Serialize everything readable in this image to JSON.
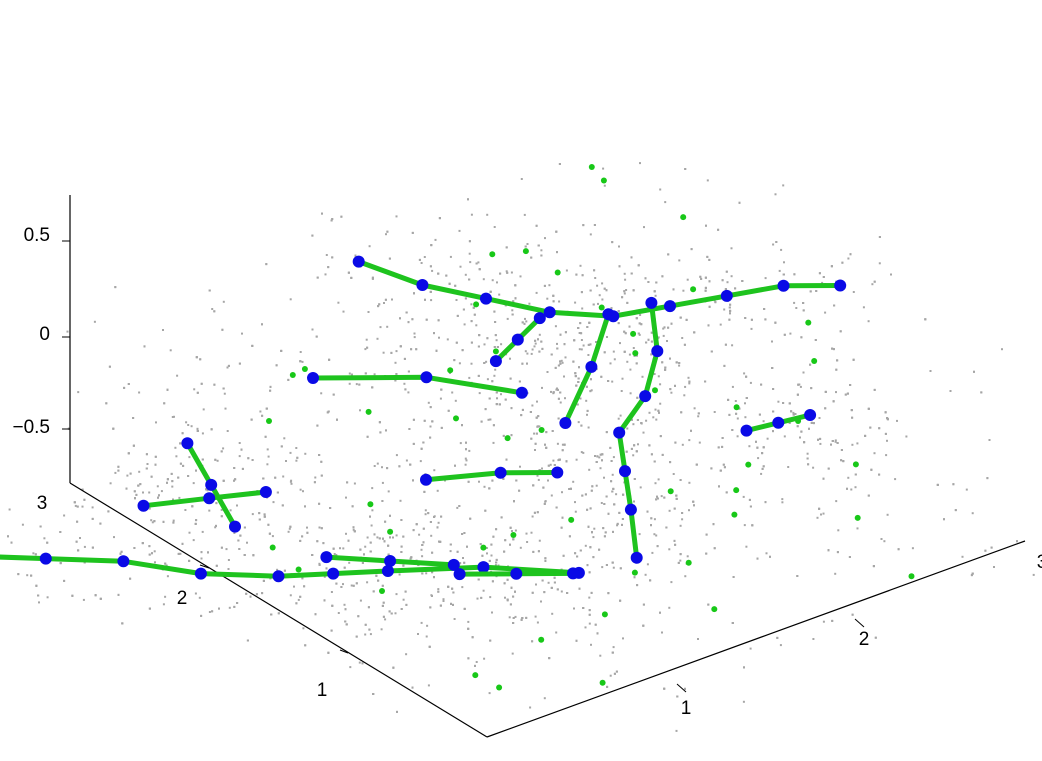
{
  "chart_data": {
    "type": "scatter",
    "projection": "3d",
    "title": "",
    "xlabel": "",
    "ylabel": "",
    "zlabel": "",
    "xlim": [
      0,
      3
    ],
    "ylim": [
      0,
      3
    ],
    "zlim": [
      -0.75,
      0.75
    ],
    "x_ticks": [
      "1",
      "2",
      "3"
    ],
    "y_ticks": [
      "1",
      "2",
      "3"
    ],
    "z_ticks": [
      "0.5",
      "0",
      "−0.5"
    ],
    "grid": false,
    "legend": "none",
    "background_cloud": {
      "name": "",
      "color": "#a6a6a6",
      "approx_count": 3000,
      "description": "gray point cloud concentrated along the skeleton lines"
    },
    "isolated_points": {
      "color": "#18c818",
      "points": [
        [
          2.6,
          2.6,
          0.6
        ],
        [
          2.0,
          2.3,
          0.5
        ],
        [
          2.8,
          1.3,
          0.3
        ],
        [
          2.6,
          1.0,
          0.3
        ],
        [
          2.2,
          0.6,
          0.3
        ],
        [
          1.7,
          0.4,
          0.2
        ],
        [
          2.2,
          2.8,
          0.2
        ],
        [
          1.8,
          2.4,
          0.25
        ],
        [
          1.6,
          2.0,
          0.25
        ],
        [
          1.2,
          1.4,
          0.2
        ],
        [
          2.1,
          1.5,
          0.1
        ],
        [
          2.0,
          0.7,
          0.1
        ],
        [
          2.5,
          2.4,
          0.0
        ],
        [
          2.7,
          2.0,
          0.2
        ],
        [
          1.7,
          1.8,
          -0.1
        ],
        [
          1.2,
          2.4,
          -0.1
        ],
        [
          1.0,
          1.1,
          -0.1
        ],
        [
          0.7,
          1.6,
          -0.2
        ],
        [
          1.4,
          1.2,
          -0.2
        ],
        [
          1.8,
          1.0,
          -0.1
        ],
        [
          2.0,
          0.8,
          -0.2
        ],
        [
          2.6,
          0.7,
          -0.1
        ],
        [
          0.8,
          2.6,
          -0.1
        ],
        [
          0.2,
          1.8,
          -0.2
        ],
        [
          0.9,
          2.0,
          -0.3
        ],
        [
          0.5,
          1.4,
          -0.35
        ],
        [
          1.2,
          0.7,
          -0.4
        ],
        [
          0.4,
          0.6,
          -0.4
        ],
        [
          0.3,
          0.3,
          -0.3
        ],
        [
          1.5,
          0.3,
          -0.3
        ],
        [
          0.8,
          0.2,
          -0.4
        ],
        [
          2.6,
          0.3,
          -0.5
        ],
        [
          2.8,
          2.2,
          0.45
        ],
        [
          0.6,
          0.8,
          0.1
        ],
        [
          1.5,
          2.2,
          0.1
        ],
        [
          2.4,
          1.3,
          0.0
        ],
        [
          1.9,
          1.4,
          0.5
        ],
        [
          1.0,
          2.6,
          0.1
        ],
        [
          0.5,
          2.0,
          -0.5
        ],
        [
          1.9,
          1.0,
          -0.5
        ],
        [
          2.3,
          1.9,
          0.05
        ],
        [
          1.6,
          1.0,
          -0.45
        ],
        [
          1.0,
          0.9,
          -0.55
        ],
        [
          0.7,
          2.3,
          0.3
        ],
        [
          1.3,
          1.9,
          0.05
        ],
        [
          2.9,
          2.9,
          0.3
        ],
        [
          2.3,
          0.3,
          -0.1
        ],
        [
          2.1,
          2.2,
          0.4
        ]
      ]
    },
    "skeleton": {
      "line_color": "#1ec31e",
      "node_color": "#0a0ae6",
      "segments": [
        [
          [
            2.9,
            1.2,
            0.5
          ],
          [
            2.7,
            1.35,
            0.5
          ],
          [
            2.5,
            1.5,
            0.45
          ],
          [
            2.3,
            1.65,
            0.4
          ],
          [
            2.1,
            1.8,
            0.35
          ],
          [
            1.9,
            2.0,
            0.35
          ],
          [
            1.7,
            2.2,
            0.4
          ],
          [
            1.5,
            2.4,
            0.45
          ],
          [
            1.3,
            2.6,
            0.55
          ]
        ],
        [
          [
            0.9,
            0.5,
            0.0
          ],
          [
            0.6,
            0.8,
            0.0
          ],
          [
            0.3,
            1.1,
            -0.05
          ],
          [
            0.15,
            1.3,
            -0.1
          ],
          [
            0.0,
            1.5,
            -0.15
          ],
          [
            -0.2,
            1.8,
            -0.2
          ],
          [
            -0.4,
            2.1,
            -0.2
          ],
          [
            -0.6,
            2.4,
            -0.25
          ],
          [
            -0.8,
            2.7,
            -0.3
          ]
        ],
        [
          [
            0.3,
            2.2,
            -0.3
          ],
          [
            0.4,
            2.5,
            -0.25
          ],
          [
            0.5,
            2.8,
            -0.2
          ]
        ],
        [
          [
            0.1,
            2.6,
            -0.3
          ],
          [
            0.35,
            2.45,
            -0.28
          ],
          [
            0.55,
            2.3,
            -0.25
          ]
        ],
        [
          [
            0.9,
            1.6,
            0.0
          ],
          [
            1.2,
            1.45,
            0.0
          ],
          [
            1.4,
            1.3,
            0.0
          ]
        ],
        [
          [
            1.6,
            1.5,
            0.1
          ],
          [
            1.9,
            1.7,
            0.2
          ],
          [
            2.15,
            1.9,
            0.3
          ]
        ],
        [
          [
            1.6,
            2.0,
            0.2
          ],
          [
            1.8,
            2.1,
            0.2
          ],
          [
            2.0,
            2.2,
            0.2
          ]
        ],
        [
          [
            1.2,
            2.8,
            -0.1
          ],
          [
            1.6,
            2.5,
            -0.1
          ],
          [
            1.9,
            2.2,
            -0.15
          ]
        ],
        [
          [
            2.3,
            1.1,
            0.0
          ],
          [
            2.4,
            1.0,
            0.05
          ],
          [
            2.5,
            0.9,
            0.1
          ]
        ],
        [
          [
            0.5,
            1.8,
            -0.35
          ],
          [
            0.7,
            1.6,
            -0.35
          ],
          [
            0.9,
            1.4,
            -0.35
          ]
        ],
        [
          [
            1.3,
            0.6,
            -0.1
          ],
          [
            1.5,
            0.9,
            -0.05
          ],
          [
            1.7,
            1.2,
            -0.05
          ],
          [
            1.9,
            1.5,
            -0.05
          ],
          [
            2.2,
            1.7,
            -0.05
          ],
          [
            2.5,
            2.0,
            -0.05
          ],
          [
            2.7,
            2.3,
            0.0
          ]
        ],
        [
          [
            0.7,
            1.1,
            -0.2
          ],
          [
            0.9,
            0.95,
            -0.2
          ],
          [
            1.1,
            0.8,
            -0.2
          ]
        ]
      ]
    }
  }
}
